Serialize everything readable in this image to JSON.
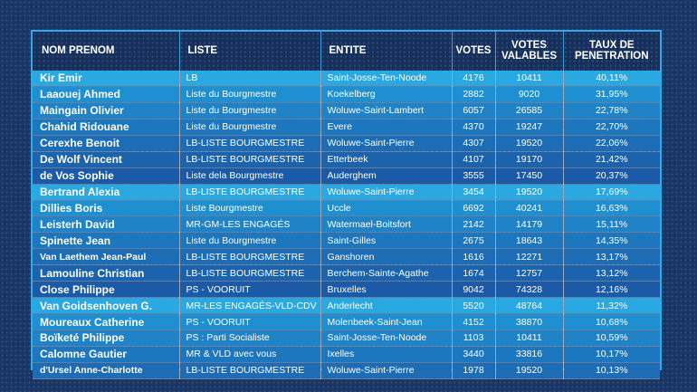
{
  "headers": {
    "nom": "NOM PRENOM",
    "liste": "LISTE",
    "entite": "ENTITE",
    "votes": "VOTES",
    "valables_l1": "VOTES",
    "valables_l2": "VALABLES",
    "taux_l1": "TAUX DE",
    "taux_l2": "PENETRATION"
  },
  "rows": [
    {
      "nom": "Kir Emir",
      "liste": "LB",
      "entite": "Saint-Josse-Ten-Noode",
      "votes": "4176",
      "valables": "10411",
      "taux": "40,11%"
    },
    {
      "nom": "Laaouej Ahmed",
      "liste": "Liste du Bourgmestre",
      "entite": "Koekelberg",
      "votes": "2882",
      "valables": "9020",
      "taux": "31,95%"
    },
    {
      "nom": "Maingain Olivier",
      "liste": "Liste du Bourgmestre",
      "entite": "Woluwe-Saint-Lambert",
      "votes": "6057",
      "valables": "26585",
      "taux": "22,78%"
    },
    {
      "nom": "Chahid Ridouane",
      "liste": "Liste du Bourgmestre",
      "entite": "Evere",
      "votes": "4370",
      "valables": "19247",
      "taux": "22,70%"
    },
    {
      "nom": "Cerexhe Benoit",
      "liste": "LB-LISTE BOURGMESTRE",
      "entite": "Woluwe-Saint-Pierre",
      "votes": "4307",
      "valables": "19520",
      "taux": "22,06%"
    },
    {
      "nom": "De Wolf Vincent",
      "liste": "LB-LISTE BOURGMESTRE",
      "entite": "Etterbeek",
      "votes": "4107",
      "valables": "19170",
      "taux": "21,42%"
    },
    {
      "nom": "de Vos Sophie",
      "liste": "Liste dela Bourgmestre",
      "entite": "Auderghem",
      "votes": "3555",
      "valables": "17450",
      "taux": "20,37%"
    },
    {
      "nom": "Bertrand Alexia",
      "liste": "LB-LISTE BOURGMESTRE",
      "entite": "Woluwe-Saint-Pierre",
      "votes": "3454",
      "valables": "19520",
      "taux": "17,69%"
    },
    {
      "nom": "Dillies Boris",
      "liste": "Liste Bourgmestre",
      "entite": "Uccle",
      "votes": "6692",
      "valables": "40241",
      "taux": "16,63%"
    },
    {
      "nom": "Leisterh David",
      "liste": "MR-GM-LES ENGAGÉS",
      "entite": "Watermael-Boitsfort",
      "votes": "2142",
      "valables": "14179",
      "taux": "15,11%"
    },
    {
      "nom": "Spinette Jean",
      "liste": "Liste du Bourgmestre",
      "entite": "Saint-Gilles",
      "votes": "2675",
      "valables": "18643",
      "taux": "14,35%"
    },
    {
      "nom": "Van Laethem Jean-Paul",
      "liste": "LB-LISTE BOURGMESTRE",
      "entite": "Ganshoren",
      "votes": "1616",
      "valables": "12271",
      "taux": "13,17%"
    },
    {
      "nom": "Lamouline Christian",
      "liste": "LB-LISTE BOURGMESTRE",
      "entite": "Berchem-Sainte-Agathe",
      "votes": "1674",
      "valables": "12757",
      "taux": "13,12%"
    },
    {
      "nom": "Close Philippe",
      "liste": "PS - VOORUIT",
      "entite": "Bruxelles",
      "votes": "9042",
      "valables": "74328",
      "taux": "12,16%"
    },
    {
      "nom": "Van Goidsenhoven G.",
      "liste": "MR-LES ENGAGÉS-VLD-CDV",
      "entite": "Anderlecht",
      "votes": "5520",
      "valables": "48764",
      "taux": "11,32%"
    },
    {
      "nom": "Moureaux Catherine",
      "liste": "PS - VOORUIT",
      "entite": "Molenbeek-Saint-Jean",
      "votes": "4152",
      "valables": "38870",
      "taux": "10,68%"
    },
    {
      "nom": "Boïketé Philippe",
      "liste": "PS : Parti Socialiste",
      "entite": "Saint-Josse-Ten-Noode",
      "votes": "1103",
      "valables": "10411",
      "taux": "10,59%"
    },
    {
      "nom": "Calomne Gautier",
      "liste": "MR & VLD avec vous",
      "entite": "Ixelles",
      "votes": "3440",
      "valables": "33816",
      "taux": "10,17%"
    },
    {
      "nom": "d'Ursel Anne-Charlotte",
      "liste": "LB-LISTE BOURGMESTRE",
      "entite": "Woluwe-Saint-Pierre",
      "votes": "1978",
      "valables": "19520",
      "taux": "10,13%"
    }
  ]
}
